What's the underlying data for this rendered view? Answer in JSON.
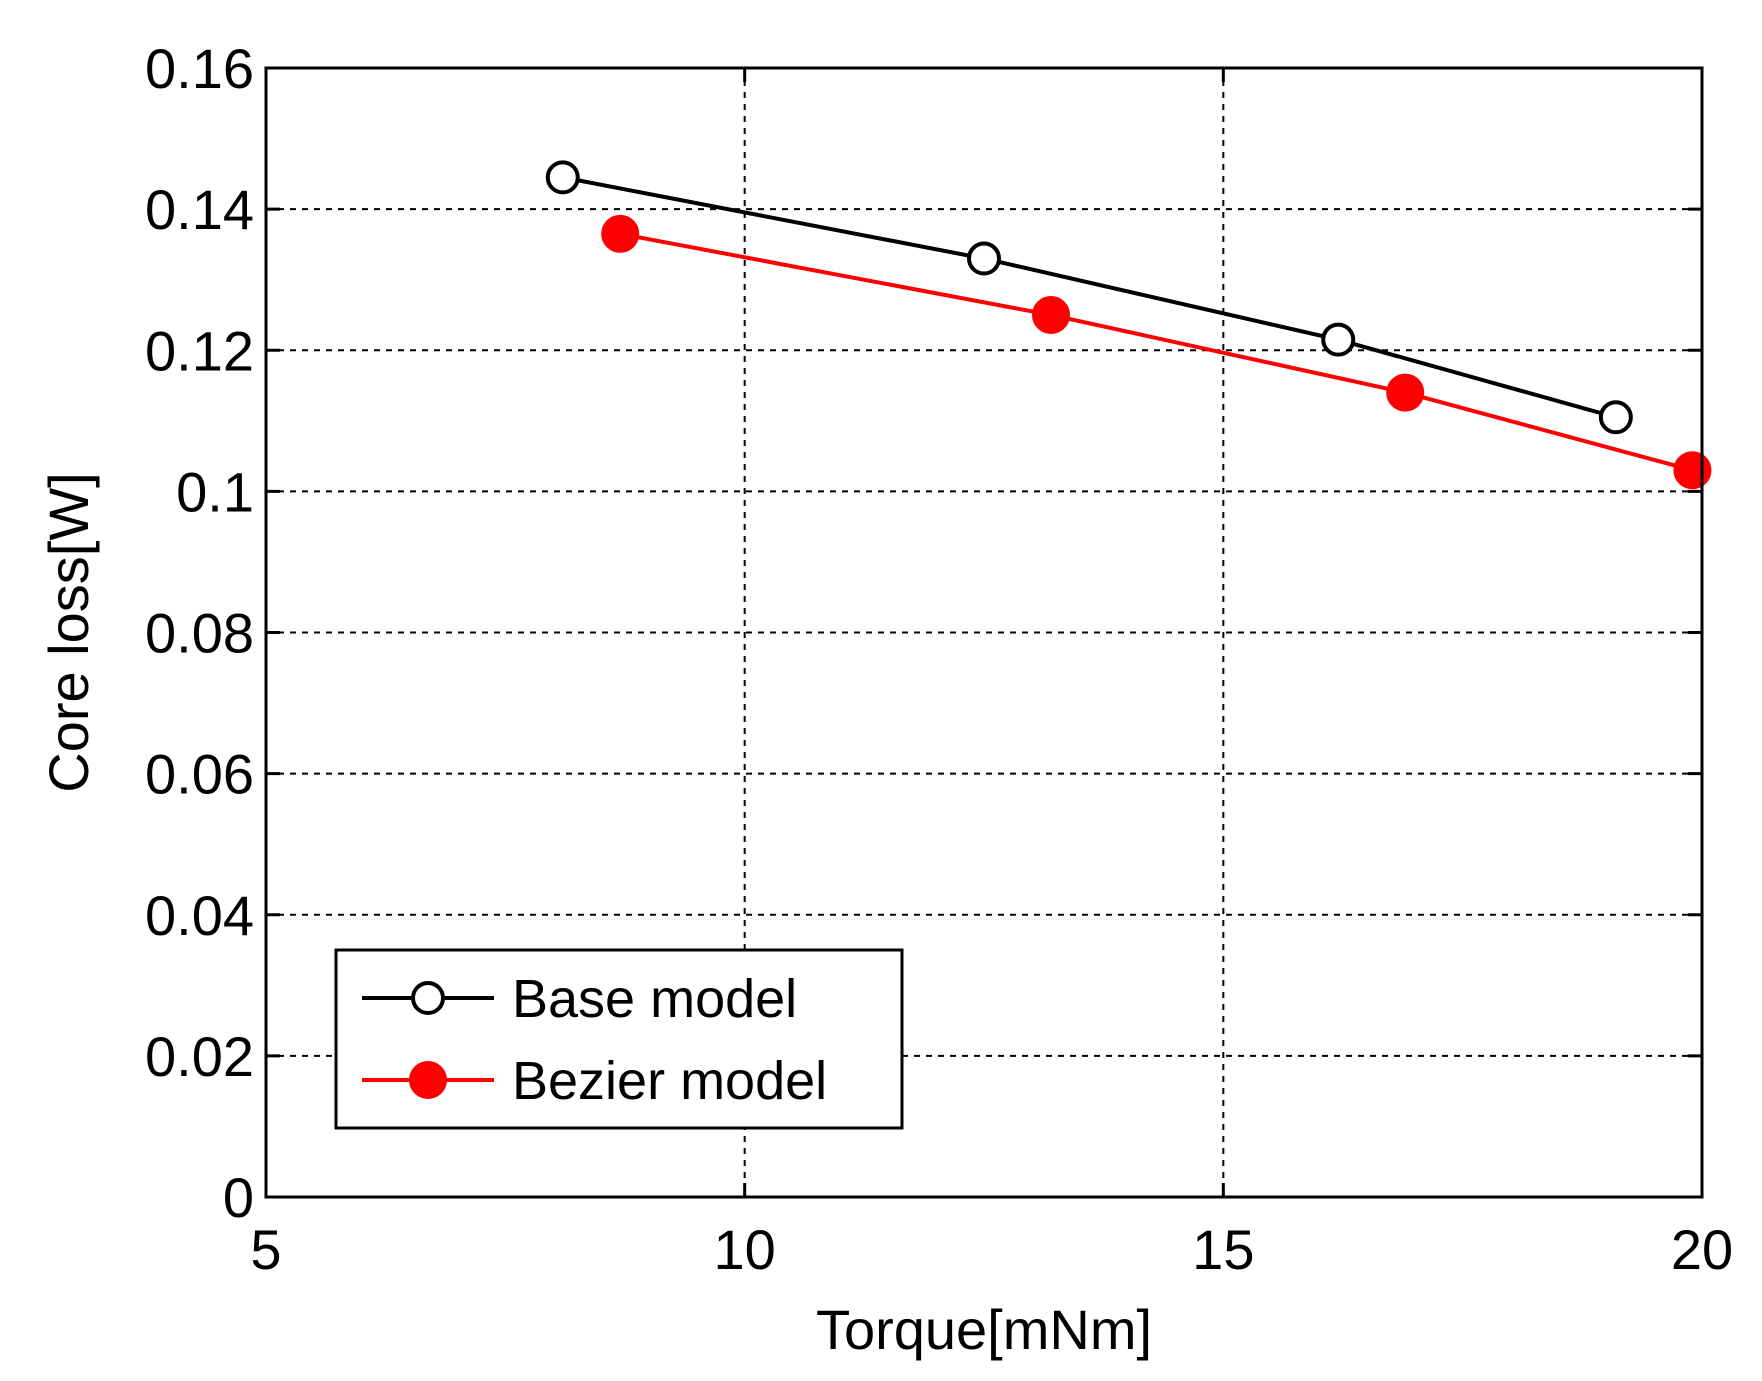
{
  "chart_data": {
    "type": "line",
    "title": "",
    "xlabel": "Torque[mNm]",
    "ylabel": "Core loss[W]",
    "xlim": [
      5,
      20
    ],
    "ylim": [
      0,
      0.16
    ],
    "xticks": [
      5,
      10,
      15,
      20
    ],
    "xtick_labels": [
      "5",
      "10",
      "15",
      "20"
    ],
    "yticks": [
      0,
      0.02,
      0.04,
      0.06,
      0.08,
      0.1,
      0.12,
      0.14,
      0.16
    ],
    "ytick_labels": [
      "0",
      "0.02",
      "0.04",
      "0.06",
      "0.08",
      "0.1",
      "0.12",
      "0.14",
      "0.16"
    ],
    "grid": true,
    "legend_position": "bottom-left",
    "series": [
      {
        "name": "Base model",
        "color": "#000000",
        "marker": "open-circle",
        "x": [
          8.1,
          12.5,
          16.2,
          19.1
        ],
        "y": [
          0.1445,
          0.133,
          0.1215,
          0.1105
        ]
      },
      {
        "name": "Bezier model",
        "color": "#ff0000",
        "marker": "filled-circle",
        "x": [
          8.7,
          13.2,
          16.9,
          19.9
        ],
        "y": [
          0.1365,
          0.125,
          0.114,
          0.103
        ]
      }
    ]
  }
}
